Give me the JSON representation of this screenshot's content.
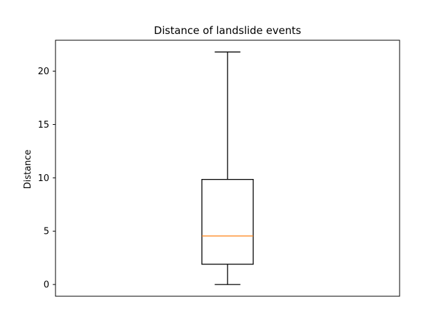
{
  "chart_data": {
    "type": "box",
    "title": "Distance of landslide events",
    "xlabel": "",
    "ylabel": "Distance",
    "ylim": [
      -1.1,
      22.9
    ],
    "yticks": [
      0,
      5,
      10,
      15,
      20
    ],
    "ytick_labels": [
      "0",
      "5",
      "10",
      "15",
      "20"
    ],
    "box": {
      "whisker_low": 0,
      "q1": 1.9,
      "median": 4.55,
      "q3": 9.85,
      "whisker_high": 21.8
    },
    "colors": {
      "box": "#000000",
      "median": "#ff7f0e"
    },
    "grid": false
  }
}
